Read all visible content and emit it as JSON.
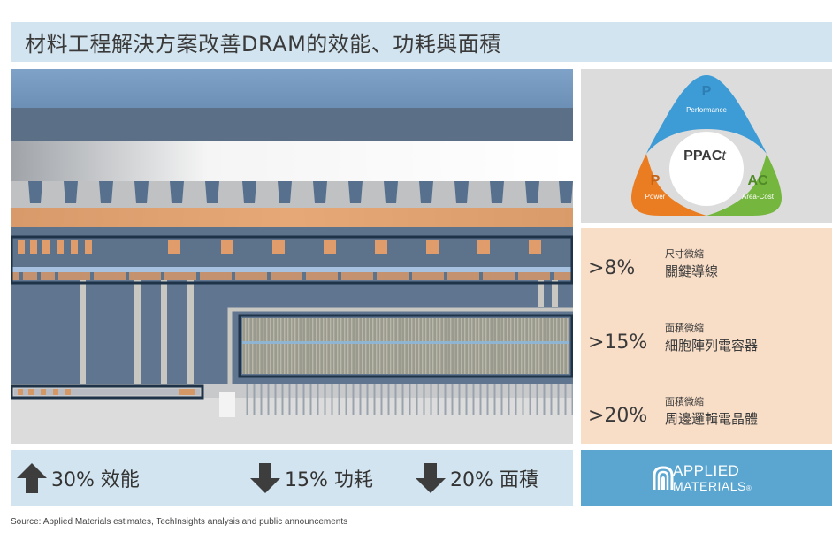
{
  "title": "材料工程解決方案改善DRAM的效能、功耗與面積",
  "ppact": {
    "center": "PPAC",
    "center_suffix": "t",
    "performance_letter": "P",
    "performance_label": "Performance",
    "power_letter": "P",
    "power_label": "Power",
    "areacost_letter": "AC",
    "areacost_label": "Area-Cost",
    "colors": {
      "performance": "#3d9bd6",
      "power": "#ea7d22",
      "areacost": "#74b63e"
    }
  },
  "stats": [
    {
      "value": ">8%",
      "small": "尺寸微縮",
      "label": "關鍵導線"
    },
    {
      "value": ">15%",
      "small": "面積微縮",
      "label": "細胞陣列電容器"
    },
    {
      "value": ">20%",
      "small": "面積微縮",
      "label": "周邊邏輯電晶體"
    }
  ],
  "metrics": [
    {
      "direction": "up",
      "label": "30% 效能",
      "icon": "arrow-up-icon"
    },
    {
      "direction": "down",
      "label": "15% 功耗",
      "icon": "arrow-down-icon"
    },
    {
      "direction": "down",
      "label": "20% 面積",
      "icon": "arrow-down-icon"
    }
  ],
  "logo": {
    "line1": "APPLIED",
    "line2": "MATERIALS",
    "mark": "®",
    "icon": "applied-materials-logo-icon"
  },
  "source": "Source:  Applied Materials estimates, TechInsights analysis and public announcements"
}
